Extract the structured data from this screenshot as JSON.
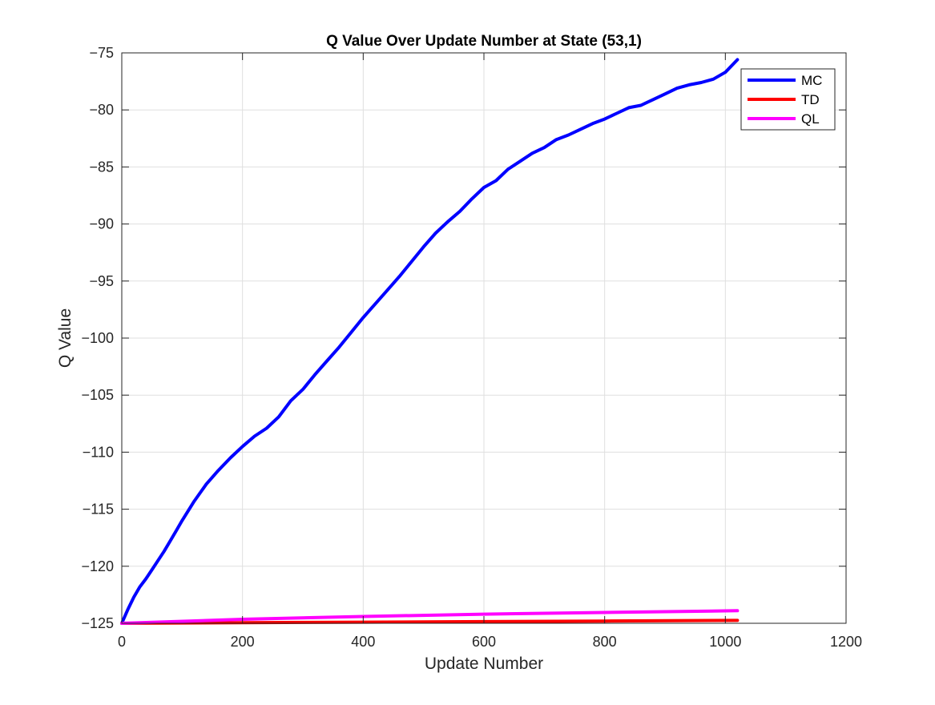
{
  "chart_data": {
    "type": "line",
    "title": "Q Value Over Update Number at State (53,1)",
    "xlabel": "Update Number",
    "ylabel": "Q Value",
    "xlim": [
      0,
      1200
    ],
    "ylim": [
      -125,
      -75
    ],
    "xticks": [
      0,
      200,
      400,
      600,
      800,
      1000,
      1200
    ],
    "yticks": [
      -75,
      -80,
      -85,
      -90,
      -95,
      -100,
      -105,
      -110,
      -115,
      -120,
      -125
    ],
    "grid": true,
    "legend_position": "top-right",
    "series": [
      {
        "name": "MC",
        "color": "#0000ff",
        "x": [
          0,
          10,
          20,
          30,
          40,
          50,
          60,
          70,
          80,
          90,
          100,
          120,
          140,
          160,
          180,
          200,
          220,
          240,
          260,
          280,
          300,
          320,
          340,
          360,
          380,
          400,
          420,
          440,
          460,
          480,
          500,
          520,
          540,
          560,
          580,
          600,
          620,
          640,
          660,
          680,
          700,
          720,
          740,
          760,
          780,
          800,
          820,
          840,
          860,
          880,
          900,
          920,
          940,
          960,
          980,
          1000,
          1020
        ],
        "y": [
          -125,
          -123.8,
          -122.7,
          -121.8,
          -121.1,
          -120.3,
          -119.5,
          -118.7,
          -117.8,
          -116.9,
          -116.0,
          -114.3,
          -112.8,
          -111.6,
          -110.5,
          -109.5,
          -108.6,
          -107.9,
          -106.9,
          -105.5,
          -104.5,
          -103.2,
          -102.0,
          -100.8,
          -99.5,
          -98.2,
          -97.0,
          -95.8,
          -94.6,
          -93.3,
          -92.0,
          -90.8,
          -89.8,
          -88.9,
          -87.8,
          -86.8,
          -86.2,
          -85.2,
          -84.5,
          -83.8,
          -83.3,
          -82.6,
          -82.2,
          -81.7,
          -81.2,
          -80.8,
          -80.3,
          -79.8,
          -79.6,
          -79.1,
          -78.6,
          -78.1,
          -77.8,
          -77.6,
          -77.3,
          -76.7,
          -75.6
        ]
      },
      {
        "name": "TD",
        "color": "#ff0000",
        "x": [
          0,
          200,
          400,
          600,
          800,
          1020
        ],
        "y": [
          -125,
          -124.95,
          -124.9,
          -124.85,
          -124.8,
          -124.75
        ]
      },
      {
        "name": "QL",
        "color": "#ff00ff",
        "x": [
          0,
          200,
          400,
          600,
          800,
          1020
        ],
        "y": [
          -125,
          -124.65,
          -124.4,
          -124.2,
          -124.05,
          -123.9
        ]
      }
    ]
  }
}
